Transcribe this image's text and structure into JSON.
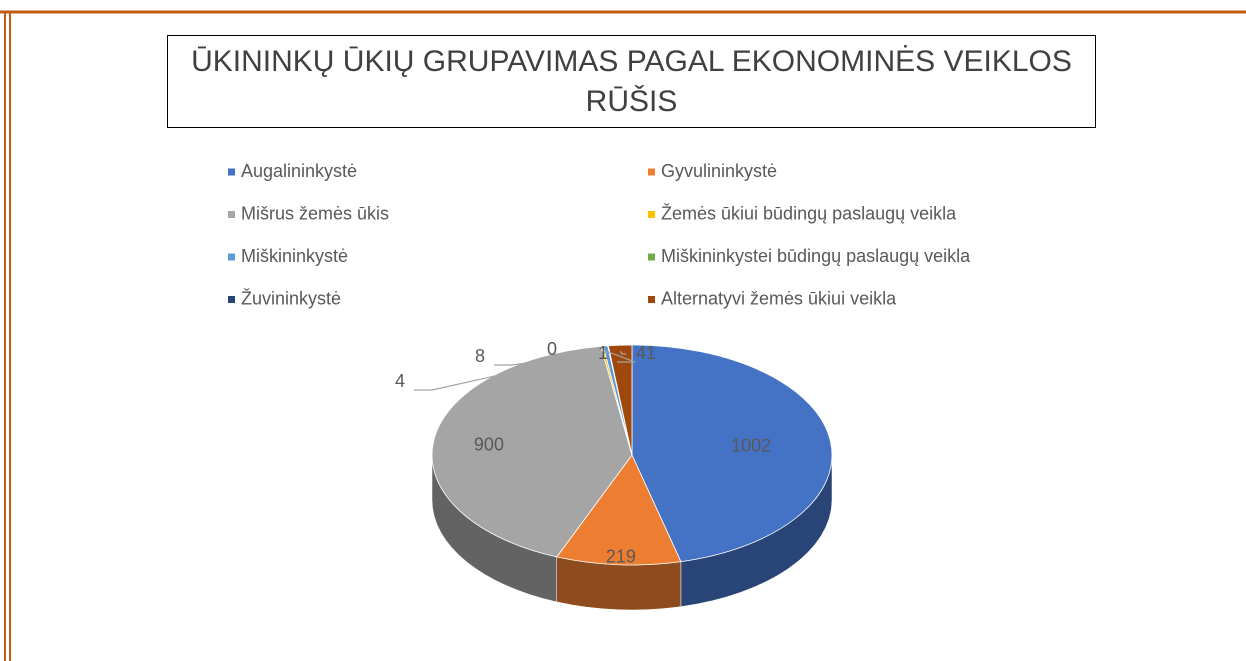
{
  "chart_data": {
    "type": "pie3d",
    "title": "ŪKININKŲ ŪKIŲ GRUPAVIMAS PAGAL EKONOMINĖS VEIKLOS RŪŠIS",
    "categories": [
      "Augalininkystė",
      "Gyvulininkystė",
      "Mišrus žemės ūkis",
      "Žemės ūkiui būdingų paslaugų veikla",
      "Miškininkystė",
      "Miškininkystei būdingų paslaugų veikla",
      "Žuvininkystė",
      "Alternatyvi žemės ūkiui veikla"
    ],
    "values": [
      1002,
      219,
      900,
      4,
      8,
      0,
      1,
      41
    ],
    "colors": [
      "#4472c4",
      "#ed7d31",
      "#a5a5a5",
      "#ffc000",
      "#5b9bd5",
      "#70ad47",
      "#264478",
      "#9e480e"
    ],
    "legend": "top"
  }
}
